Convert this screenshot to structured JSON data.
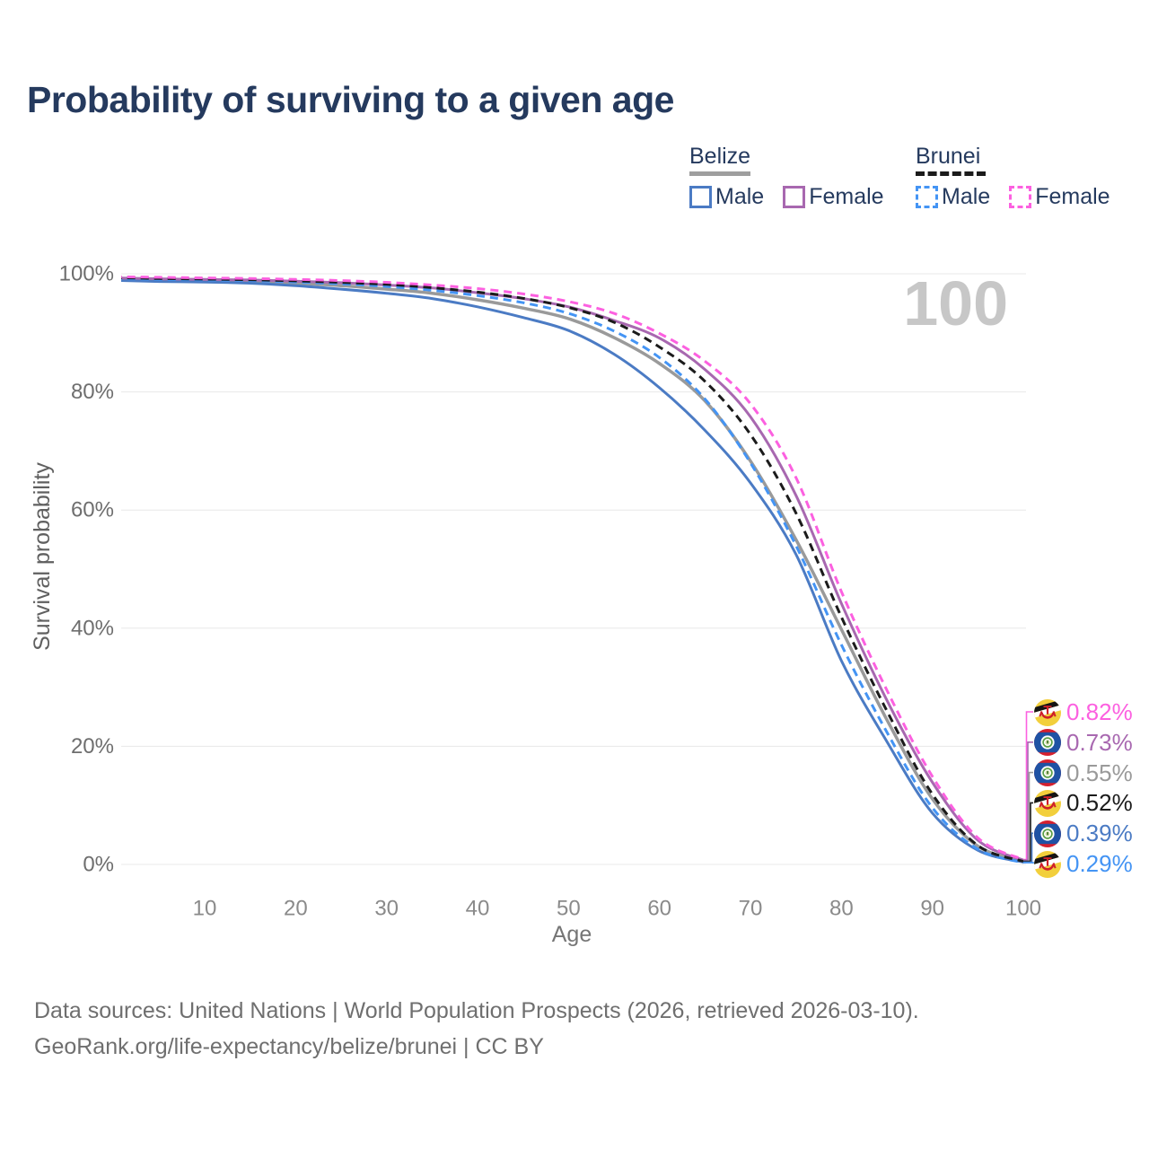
{
  "title": "Probability of surviving to a given age",
  "hover_age_indicator": "100",
  "legend": {
    "groups": [
      {
        "name": "Belize",
        "line_style": "solid",
        "underline_color": "#9e9e9e",
        "items": [
          {
            "label": "Male",
            "color": "#4b7bc4"
          },
          {
            "label": "Female",
            "color": "#a868b0"
          }
        ]
      },
      {
        "name": "Brunei",
        "line_style": "dashed",
        "underline_color": "#1b1b1b",
        "items": [
          {
            "label": "Male",
            "color": "#4494f4"
          },
          {
            "label": "Female",
            "color": "#fc60e0"
          }
        ]
      }
    ]
  },
  "end_labels": [
    {
      "series": "brunei-female",
      "text": "0.82%",
      "flag": "brunei",
      "color": "#fc60e0"
    },
    {
      "series": "belize-female",
      "text": "0.73%",
      "flag": "belize",
      "color": "#a868b0"
    },
    {
      "series": "belize-total",
      "text": "0.55%",
      "flag": "belize",
      "color": "#9a9a9a"
    },
    {
      "series": "brunei-total",
      "text": "0.52%",
      "flag": "brunei",
      "color": "#1b1b1b"
    },
    {
      "series": "belize-male",
      "text": "0.39%",
      "flag": "belize",
      "color": "#4b7bc4"
    },
    {
      "series": "brunei-male",
      "text": "0.29%",
      "flag": "brunei",
      "color": "#4494f4"
    }
  ],
  "footer": {
    "line1": "Data sources: United Nations | World Population Prospects (2026, retrieved 2026-03-10).",
    "line2": "GeoRank.org/life-expectancy/belize/brunei | CC BY"
  },
  "chart_data": {
    "type": "line",
    "title": "Probability of surviving to a given age",
    "xlabel": "Age",
    "ylabel": "Survival probability",
    "xlim": [
      0,
      100
    ],
    "ylim": [
      0,
      100
    ],
    "x_ticks": [
      10,
      20,
      30,
      40,
      50,
      60,
      70,
      80,
      90,
      100
    ],
    "y_ticks": [
      0,
      20,
      40,
      60,
      80,
      100
    ],
    "y_tick_suffix": "%",
    "grid": "horizontal",
    "legend_position": "top-right",
    "ages": [
      0,
      5,
      10,
      15,
      20,
      25,
      30,
      35,
      40,
      45,
      50,
      55,
      60,
      65,
      70,
      75,
      80,
      85,
      90,
      95,
      100
    ],
    "series": [
      {
        "id": "belize-total",
        "name": "Belize (all)",
        "country": "Belize",
        "sex": "All",
        "color": "#9a9a9a",
        "dash": "solid",
        "width": 3.5,
        "end_value_pct": 0.55,
        "values": [
          99.1,
          98.95,
          98.85,
          98.7,
          98.4,
          98.0,
          97.4,
          96.7,
          95.6,
          94.2,
          92.4,
          89.2,
          84.8,
          78.5,
          68.3,
          55.0,
          39.8,
          24.5,
          11.1,
          3.1,
          0.55
        ]
      },
      {
        "id": "belize-male",
        "name": "Belize Male",
        "country": "Belize",
        "sex": "Male",
        "color": "#4b7bc4",
        "dash": "solid",
        "width": 3,
        "end_value_pct": 0.39,
        "values": [
          98.9,
          98.7,
          98.6,
          98.4,
          98.0,
          97.4,
          96.7,
          95.8,
          94.4,
          92.6,
          90.4,
          86.4,
          80.7,
          73.5,
          64.6,
          52.5,
          34.5,
          20.8,
          8.7,
          2.4,
          0.39
        ]
      },
      {
        "id": "belize-female",
        "name": "Belize Female",
        "country": "Belize",
        "sex": "Female",
        "color": "#a868b0",
        "dash": "solid",
        "width": 3,
        "end_value_pct": 0.73,
        "values": [
          99.3,
          99.15,
          99.05,
          98.95,
          98.75,
          98.5,
          98.1,
          97.6,
          96.8,
          95.8,
          94.4,
          92.1,
          89.1,
          83.8,
          75.8,
          62.5,
          44.2,
          27.8,
          13.9,
          4.1,
          0.73
        ]
      },
      {
        "id": "brunei-male",
        "name": "Brunei Male",
        "country": "Brunei",
        "sex": "Male",
        "color": "#4494f4",
        "dash": "dashed",
        "width": 3,
        "end_value_pct": 0.29,
        "values": [
          99.2,
          99.05,
          98.95,
          98.85,
          98.6,
          98.3,
          97.85,
          97.2,
          96.3,
          95.1,
          93.3,
          90.3,
          85.8,
          78.8,
          68.0,
          54.0,
          37.2,
          22.4,
          9.6,
          2.6,
          0.29
        ]
      },
      {
        "id": "brunei-total",
        "name": "Brunei (all)",
        "country": "Brunei",
        "sex": "All",
        "color": "#1b1b1b",
        "dash": "dashed",
        "width": 3,
        "end_value_pct": 0.52,
        "values": [
          99.35,
          99.2,
          99.1,
          99.0,
          98.8,
          98.55,
          98.2,
          97.65,
          96.9,
          95.85,
          94.3,
          91.8,
          87.6,
          81.8,
          72.8,
          59.5,
          41.9,
          26.0,
          11.9,
          3.2,
          0.52
        ]
      },
      {
        "id": "brunei-female",
        "name": "Brunei Female",
        "country": "Brunei",
        "sex": "Female",
        "color": "#fc60e0",
        "dash": "dashed",
        "width": 3,
        "end_value_pct": 0.82,
        "values": [
          99.5,
          99.4,
          99.3,
          99.2,
          99.05,
          98.85,
          98.55,
          98.1,
          97.5,
          96.6,
          95.3,
          93.3,
          89.9,
          85.2,
          78.0,
          65.5,
          46.2,
          29.5,
          14.9,
          4.5,
          0.82
        ]
      }
    ]
  }
}
